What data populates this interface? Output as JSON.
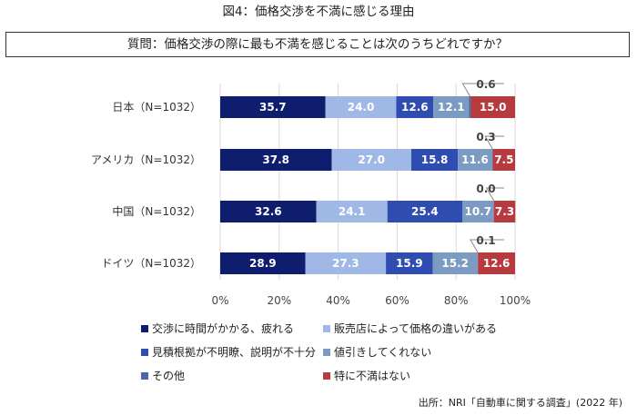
{
  "figure_title": "図4：価格交渉を不満に感じる理由",
  "question": "質問：価格交渉の際に最も不満を感じることは次のうちどれですか？",
  "source": "出所：NRI「自動車に関する調査」(2022 年)",
  "colors": [
    "#0f1d6e",
    "#9fb8e6",
    "#2f4db0",
    "#7c9bc3",
    "#4a68a8",
    "#b63a3e"
  ],
  "chart_data": {
    "type": "bar",
    "orientation": "horizontal",
    "stacked": true,
    "percent_scale": true,
    "categories": [
      "日本（N=1032）",
      "アメリカ（N=1032）",
      "中国（N=1032）",
      "ドイツ（N=1032）"
    ],
    "series": [
      {
        "name": "交渉に時間がかかる、疲れる",
        "values": [
          35.7,
          37.8,
          32.6,
          28.9
        ]
      },
      {
        "name": "販売店によって価格の違いがある",
        "values": [
          24.0,
          27.0,
          24.1,
          27.3
        ]
      },
      {
        "name": "見積根拠が不明瞭、説明が不十分",
        "values": [
          12.6,
          15.8,
          25.4,
          15.9
        ]
      },
      {
        "name": "値引きしてくれない",
        "values": [
          12.1,
          11.6,
          10.7,
          15.2
        ]
      },
      {
        "name": "その他",
        "values": [
          0.6,
          0.3,
          0.0,
          0.1
        ]
      },
      {
        "name": "特に不満はない",
        "values": [
          15.0,
          7.5,
          7.3,
          12.6
        ]
      }
    ],
    "data_labels": [
      [
        "35.7",
        "24.0",
        "12.6",
        "12.1",
        "0.6",
        "15.0"
      ],
      [
        "37.8",
        "27.0",
        "15.8",
        "11.6",
        "0.3",
        "7.5"
      ],
      [
        "32.6",
        "24.1",
        "25.4",
        "10.7",
        "0.0",
        "7.3"
      ],
      [
        "28.9",
        "27.3",
        "15.9",
        "15.2",
        "0.1",
        "12.6"
      ]
    ],
    "x_ticks": [
      "0%",
      "20%",
      "40%",
      "60%",
      "80%",
      "100%"
    ],
    "xlim": [
      0,
      100
    ],
    "grid": true,
    "legend_position": "bottom"
  }
}
